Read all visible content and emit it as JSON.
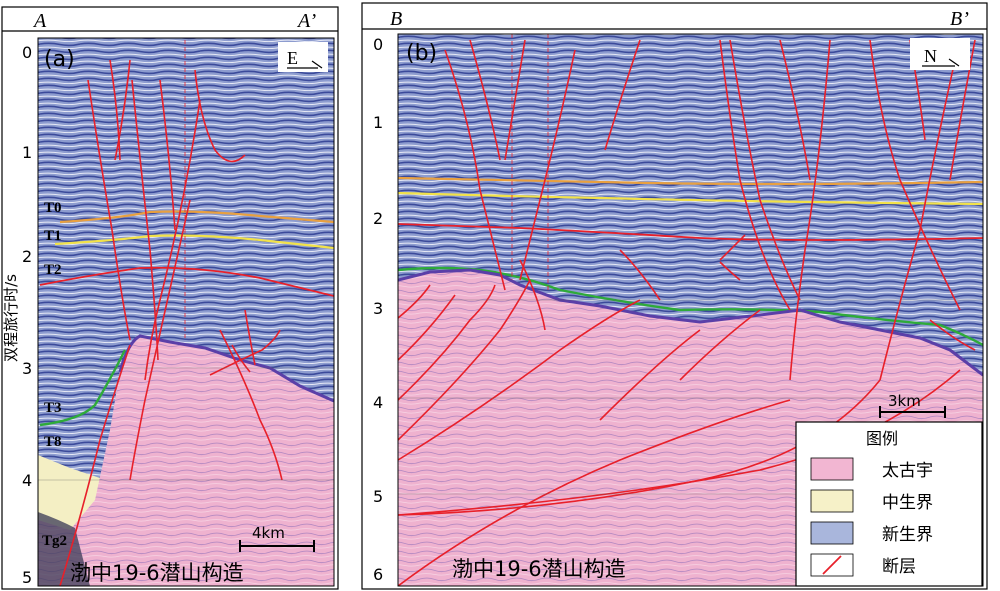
{
  "panel_a": {
    "tag": "(a)",
    "left_label": "A",
    "right_label": "A’",
    "direction": "E",
    "time_ticks": [
      "0",
      "1",
      "2",
      "3",
      "4",
      "5"
    ],
    "horizons": [
      "T0",
      "T1",
      "T2",
      "T3",
      "T8",
      "Tg2"
    ],
    "scale": "4km",
    "caption": "渤中19-6潜山构造"
  },
  "panel_b": {
    "tag": "(b)",
    "left_label": "B",
    "right_label": "B’",
    "direction": "N",
    "time_ticks": [
      "0",
      "1",
      "2",
      "3",
      "4",
      "5",
      "6"
    ],
    "scale": "3km",
    "caption": "渤中19-6潜山构造"
  },
  "y_axis_label": "双程旅行时/s",
  "legend": {
    "title": "图例",
    "items": [
      {
        "label": "太古宇",
        "color": "#f2b6d2"
      },
      {
        "label": "中生界",
        "color": "#f6f1c8"
      },
      {
        "label": "新生界",
        "color": "#a9b6dc"
      },
      {
        "label": "断层",
        "color": "#e8202a"
      }
    ]
  },
  "colors": {
    "cenozoic": "#6c7fc0",
    "archean": "#f2b6d2",
    "mesozoic": "#f6f1c8",
    "fault": "#e8202a",
    "t0": "#e8a040",
    "t1": "#f2e24a",
    "t3": "#2eaa3a",
    "top_archean": "#5a3fa8"
  }
}
